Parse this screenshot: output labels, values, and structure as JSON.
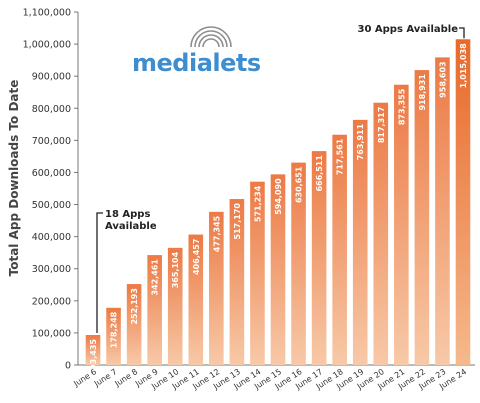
{
  "logo": {
    "text": "medialets"
  },
  "chart_data": {
    "type": "bar",
    "ylabel": "Total App Downloads To Date",
    "xlabel": "",
    "title": "",
    "ylim": [
      0,
      1100000
    ],
    "yticks": [
      0,
      100000,
      200000,
      300000,
      400000,
      500000,
      600000,
      700000,
      800000,
      900000,
      1000000,
      1100000
    ],
    "ytick_labels": [
      "0",
      "100,000",
      "200,000",
      "300,000",
      "400,000",
      "500,000",
      "600,000",
      "700,000",
      "800,000",
      "900,000",
      "1,000,000",
      "1,100,000"
    ],
    "categories": [
      "June 6",
      "June 7",
      "June 8",
      "June 9",
      "June 10",
      "June 11",
      "June 12",
      "June 13",
      "June 14",
      "June 15",
      "June 16",
      "June 17",
      "June 18",
      "June 19",
      "June 20",
      "June 21",
      "June 22",
      "June 23",
      "June 24"
    ],
    "values": [
      93435,
      178248,
      252193,
      342461,
      365104,
      406457,
      477345,
      517170,
      571234,
      594090,
      630651,
      666511,
      717561,
      763911,
      817317,
      873355,
      918931,
      958603,
      1015038
    ],
    "value_labels": [
      "93,435",
      "178,248",
      "252,193",
      "342,461",
      "365,104",
      "406,457",
      "477,345",
      "517,170",
      "571,234",
      "594,090",
      "630,651",
      "666,511",
      "717,561",
      "763,911",
      "817,317",
      "873,355",
      "918,931",
      "958,603",
      "1,015,038"
    ],
    "colors": {
      "bar_top": "#ec7a45",
      "bar_bottom": "#f7c9a8",
      "last_bar_top": "#e8692b",
      "last_bar_bottom": "#f5b98d"
    },
    "annotations": [
      {
        "lines": [
          "18 Apps",
          "Available"
        ],
        "target_category": "June 6"
      },
      {
        "lines": [
          "30 Apps Available"
        ],
        "target_category": "June 24"
      }
    ],
    "grid": false,
    "legend": "none"
  }
}
